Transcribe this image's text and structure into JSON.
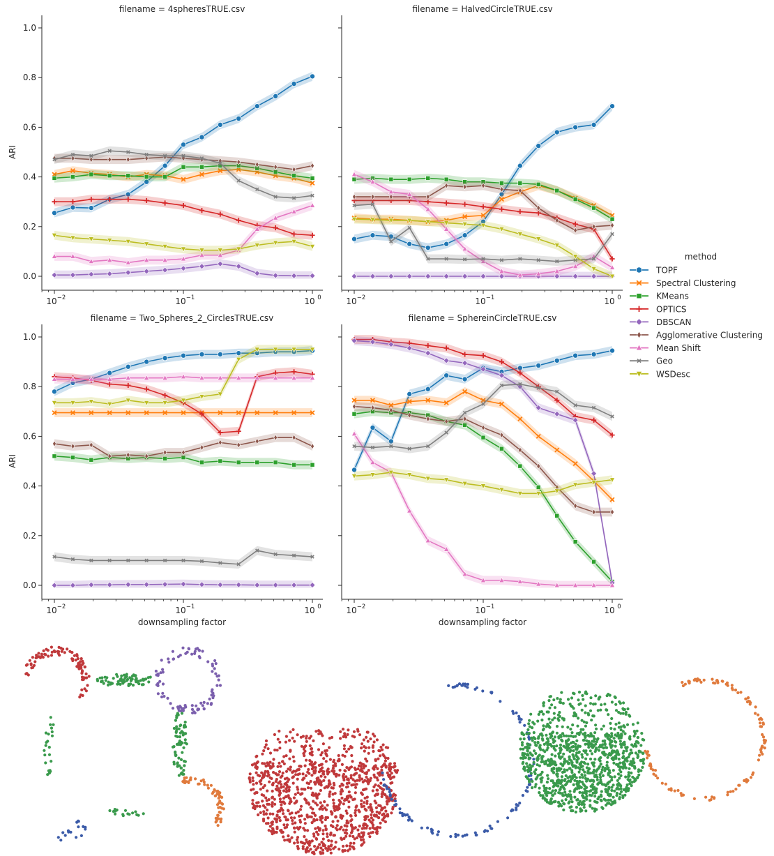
{
  "figure": {
    "legend": {
      "title": "method",
      "entries": [
        {
          "name": "TOPF",
          "color": "#1f77b4",
          "marker": "circle"
        },
        {
          "name": "Spectral Clustering",
          "color": "#ff7f0e",
          "marker": "x"
        },
        {
          "name": "KMeans",
          "color": "#2ca02c",
          "marker": "square"
        },
        {
          "name": "OPTICS",
          "color": "#d62728",
          "marker": "plus"
        },
        {
          "name": "DBSCAN",
          "color": "#9467bd",
          "marker": "diamond"
        },
        {
          "name": "Agglomerative Clustering",
          "color": "#8c564b",
          "marker": "thin-diamond"
        },
        {
          "name": "Mean Shift",
          "color": "#e377c2",
          "marker": "triangle-up"
        },
        {
          "name": "Geo",
          "color": "#7f7f7f",
          "marker": "x-small"
        },
        {
          "name": "WSDesc",
          "color": "#bcbd22",
          "marker": "triangle-down"
        }
      ]
    },
    "ylabel": "ARI",
    "xlabel": "downsampling factor",
    "x_tick_labels": [
      "10",
      "10",
      "10"
    ],
    "x_tick_exponents": [
      "−2",
      "−1",
      "0"
    ],
    "y_tick_labels": [
      "0.0",
      "0.2",
      "0.4",
      "0.6",
      "0.8",
      "1.0"
    ]
  },
  "chart_data": [
    {
      "type": "line",
      "title": "filename = 4spheresTRUE.csv",
      "xscale": "log",
      "xlim": [
        0.01,
        1
      ],
      "ylim": [
        0,
        1
      ],
      "x": [
        0.01,
        0.0139,
        0.0193,
        0.0268,
        0.0373,
        0.0518,
        0.072,
        0.1,
        0.139,
        0.193,
        0.268,
        0.373,
        0.518,
        0.72,
        1.0
      ],
      "series": [
        {
          "name": "TOPF",
          "values": [
            0.255,
            0.277,
            0.275,
            0.31,
            0.33,
            0.38,
            0.445,
            0.53,
            0.56,
            0.61,
            0.635,
            0.685,
            0.725,
            0.775,
            0.805
          ]
        },
        {
          "name": "Spectral Clustering",
          "values": [
            0.41,
            0.425,
            0.415,
            0.41,
            0.4,
            0.41,
            0.405,
            0.39,
            0.41,
            0.425,
            0.43,
            0.42,
            0.405,
            0.395,
            0.375
          ]
        },
        {
          "name": "KMeans",
          "values": [
            0.395,
            0.4,
            0.41,
            0.405,
            0.405,
            0.4,
            0.4,
            0.44,
            0.44,
            0.445,
            0.445,
            0.435,
            0.42,
            0.405,
            0.395
          ]
        },
        {
          "name": "OPTICS",
          "values": [
            0.3,
            0.3,
            0.31,
            0.31,
            0.31,
            0.305,
            0.295,
            0.285,
            0.265,
            0.25,
            0.225,
            0.205,
            0.195,
            0.17,
            0.165
          ]
        },
        {
          "name": "DBSCAN",
          "values": [
            0.005,
            0.005,
            0.008,
            0.01,
            0.015,
            0.02,
            0.025,
            0.032,
            0.04,
            0.05,
            0.04,
            0.012,
            0.003,
            0.002,
            0.002
          ]
        },
        {
          "name": "Agglomerative Clustering",
          "values": [
            0.475,
            0.475,
            0.47,
            0.47,
            0.47,
            0.475,
            0.48,
            0.475,
            0.47,
            0.465,
            0.46,
            0.45,
            0.44,
            0.43,
            0.445
          ]
        },
        {
          "name": "Mean Shift",
          "values": [
            0.08,
            0.08,
            0.06,
            0.065,
            0.055,
            0.065,
            0.065,
            0.07,
            0.085,
            0.085,
            0.105,
            0.19,
            0.235,
            0.26,
            0.285
          ]
        },
        {
          "name": "Geo",
          "values": [
            0.47,
            0.49,
            0.485,
            0.505,
            0.5,
            0.49,
            0.485,
            0.485,
            0.475,
            0.455,
            0.385,
            0.35,
            0.32,
            0.315,
            0.325
          ]
        },
        {
          "name": "WSDesc",
          "values": [
            0.165,
            0.155,
            0.15,
            0.145,
            0.14,
            0.13,
            0.12,
            0.11,
            0.105,
            0.105,
            0.11,
            0.125,
            0.135,
            0.14,
            0.12
          ]
        }
      ]
    },
    {
      "type": "line",
      "title": "filename = HalvedCircleTRUE.csv",
      "xscale": "log",
      "xlim": [
        0.01,
        1
      ],
      "ylim": [
        0,
        1
      ],
      "x": [
        0.01,
        0.0139,
        0.0193,
        0.0268,
        0.0373,
        0.0518,
        0.072,
        0.1,
        0.139,
        0.193,
        0.268,
        0.373,
        0.518,
        0.72,
        1.0
      ],
      "series": [
        {
          "name": "TOPF",
          "values": [
            0.15,
            0.165,
            0.16,
            0.13,
            0.115,
            0.13,
            0.165,
            0.22,
            0.33,
            0.445,
            0.525,
            0.58,
            0.6,
            0.61,
            0.685
          ]
        },
        {
          "name": "Spectral Clustering",
          "values": [
            0.235,
            0.23,
            0.23,
            0.225,
            0.22,
            0.225,
            0.24,
            0.245,
            0.31,
            0.34,
            0.365,
            0.345,
            0.315,
            0.285,
            0.245
          ]
        },
        {
          "name": "KMeans",
          "values": [
            0.39,
            0.395,
            0.39,
            0.39,
            0.395,
            0.39,
            0.38,
            0.38,
            0.375,
            0.375,
            0.37,
            0.345,
            0.31,
            0.275,
            0.23
          ]
        },
        {
          "name": "OPTICS",
          "values": [
            0.305,
            0.305,
            0.305,
            0.305,
            0.3,
            0.295,
            0.29,
            0.28,
            0.27,
            0.26,
            0.255,
            0.235,
            0.21,
            0.19,
            0.07
          ]
        },
        {
          "name": "DBSCAN",
          "values": [
            0.0,
            0.0,
            0.0,
            0.0,
            0.0,
            0.0,
            0.0,
            0.0,
            0.0,
            0.0,
            0.0,
            0.0,
            0.0,
            0.0,
            0.0
          ]
        },
        {
          "name": "Agglomerative Clustering",
          "values": [
            0.32,
            0.32,
            0.32,
            0.32,
            0.32,
            0.365,
            0.36,
            0.365,
            0.35,
            0.345,
            0.275,
            0.225,
            0.185,
            0.2,
            0.205
          ]
        },
        {
          "name": "Mean Shift",
          "values": [
            0.41,
            0.38,
            0.34,
            0.33,
            0.27,
            0.19,
            0.11,
            0.06,
            0.02,
            0.005,
            0.01,
            0.02,
            0.04,
            0.08,
            0.035
          ]
        },
        {
          "name": "Geo",
          "values": [
            0.285,
            0.29,
            0.14,
            0.195,
            0.07,
            0.07,
            0.068,
            0.07,
            0.065,
            0.07,
            0.065,
            0.06,
            0.065,
            0.07,
            0.17
          ]
        },
        {
          "name": "WSDesc",
          "values": [
            0.23,
            0.228,
            0.225,
            0.225,
            0.22,
            0.215,
            0.21,
            0.205,
            0.19,
            0.17,
            0.15,
            0.125,
            0.08,
            0.03,
            0.0
          ]
        }
      ]
    },
    {
      "type": "line",
      "title": "filename = Two_Spheres_2_CirclesTRUE.csv",
      "xscale": "log",
      "xlim": [
        0.01,
        1
      ],
      "ylim": [
        0,
        1
      ],
      "x": [
        0.01,
        0.0139,
        0.0193,
        0.0268,
        0.0373,
        0.0518,
        0.072,
        0.1,
        0.139,
        0.193,
        0.268,
        0.373,
        0.518,
        0.72,
        1.0
      ],
      "series": [
        {
          "name": "TOPF",
          "values": [
            0.78,
            0.815,
            0.83,
            0.855,
            0.88,
            0.9,
            0.915,
            0.925,
            0.93,
            0.93,
            0.935,
            0.935,
            0.94,
            0.94,
            0.945
          ]
        },
        {
          "name": "Spectral Clustering",
          "values": [
            0.695,
            0.695,
            0.695,
            0.695,
            0.695,
            0.695,
            0.695,
            0.695,
            0.695,
            0.695,
            0.695,
            0.695,
            0.695,
            0.695,
            0.695
          ]
        },
        {
          "name": "KMeans",
          "values": [
            0.52,
            0.515,
            0.505,
            0.515,
            0.51,
            0.515,
            0.51,
            0.515,
            0.495,
            0.5,
            0.495,
            0.495,
            0.495,
            0.485,
            0.485
          ]
        },
        {
          "name": "OPTICS",
          "values": [
            0.84,
            0.835,
            0.825,
            0.81,
            0.805,
            0.79,
            0.765,
            0.735,
            0.69,
            0.615,
            0.62,
            0.84,
            0.855,
            0.86,
            0.85
          ]
        },
        {
          "name": "DBSCAN",
          "values": [
            0.0,
            0.0,
            0.002,
            0.002,
            0.003,
            0.003,
            0.004,
            0.005,
            0.003,
            0.002,
            0.002,
            0.001,
            0.001,
            0.001,
            0.001
          ]
        },
        {
          "name": "Agglomerative Clustering",
          "values": [
            0.57,
            0.56,
            0.565,
            0.52,
            0.525,
            0.52,
            0.535,
            0.535,
            0.555,
            0.575,
            0.565,
            0.58,
            0.595,
            0.595,
            0.56
          ]
        },
        {
          "name": "Mean Shift",
          "values": [
            0.83,
            0.83,
            0.83,
            0.83,
            0.835,
            0.835,
            0.835,
            0.84,
            0.835,
            0.835,
            0.835,
            0.835,
            0.835,
            0.835,
            0.835
          ]
        },
        {
          "name": "Geo",
          "values": [
            0.115,
            0.105,
            0.1,
            0.1,
            0.1,
            0.1,
            0.1,
            0.1,
            0.097,
            0.09,
            0.085,
            0.14,
            0.125,
            0.12,
            0.115
          ]
        },
        {
          "name": "WSDesc",
          "values": [
            0.735,
            0.735,
            0.74,
            0.73,
            0.745,
            0.735,
            0.735,
            0.745,
            0.76,
            0.77,
            0.91,
            0.95,
            0.95,
            0.95,
            0.95
          ]
        }
      ]
    },
    {
      "type": "line",
      "title": "filename = SphereinCircleTRUE.csv",
      "xscale": "log",
      "xlim": [
        0.01,
        1
      ],
      "ylim": [
        0,
        1
      ],
      "x": [
        0.01,
        0.0139,
        0.0193,
        0.0268,
        0.0373,
        0.0518,
        0.072,
        0.1,
        0.139,
        0.193,
        0.268,
        0.373,
        0.518,
        0.72,
        1.0
      ],
      "series": [
        {
          "name": "TOPF",
          "values": [
            0.465,
            0.635,
            0.58,
            0.77,
            0.79,
            0.845,
            0.83,
            0.875,
            0.86,
            0.875,
            0.885,
            0.905,
            0.925,
            0.93,
            0.945
          ]
        },
        {
          "name": "Spectral Clustering",
          "values": [
            0.745,
            0.745,
            0.725,
            0.74,
            0.745,
            0.735,
            0.78,
            0.745,
            0.73,
            0.67,
            0.6,
            0.545,
            0.49,
            0.42,
            0.345
          ]
        },
        {
          "name": "KMeans",
          "values": [
            0.69,
            0.7,
            0.695,
            0.695,
            0.685,
            0.66,
            0.645,
            0.595,
            0.55,
            0.48,
            0.395,
            0.28,
            0.175,
            0.095,
            0.015
          ]
        },
        {
          "name": "OPTICS",
          "values": [
            0.99,
            0.99,
            0.98,
            0.975,
            0.965,
            0.955,
            0.93,
            0.925,
            0.9,
            0.855,
            0.8,
            0.745,
            0.68,
            0.665,
            0.605
          ]
        },
        {
          "name": "DBSCAN",
          "values": [
            0.985,
            0.98,
            0.97,
            0.955,
            0.935,
            0.905,
            0.895,
            0.87,
            0.845,
            0.8,
            0.715,
            0.69,
            0.665,
            0.45,
            0.01
          ]
        },
        {
          "name": "Agglomerative Clustering",
          "values": [
            0.72,
            0.715,
            0.705,
            0.685,
            0.67,
            0.66,
            0.67,
            0.635,
            0.605,
            0.545,
            0.48,
            0.395,
            0.32,
            0.295,
            0.295
          ]
        },
        {
          "name": "Mean Shift",
          "values": [
            0.61,
            0.495,
            0.455,
            0.3,
            0.18,
            0.145,
            0.045,
            0.02,
            0.02,
            0.015,
            0.005,
            0.0,
            0.0,
            0.0,
            0.0
          ]
        },
        {
          "name": "Geo",
          "values": [
            0.56,
            0.555,
            0.56,
            0.55,
            0.56,
            0.615,
            0.695,
            0.73,
            0.805,
            0.81,
            0.795,
            0.78,
            0.725,
            0.715,
            0.68
          ]
        },
        {
          "name": "WSDesc",
          "values": [
            0.44,
            0.445,
            0.455,
            0.445,
            0.43,
            0.425,
            0.41,
            0.4,
            0.385,
            0.37,
            0.37,
            0.38,
            0.405,
            0.415,
            0.425
          ]
        }
      ]
    }
  ],
  "scatter_illustrations": {
    "colors": {
      "red": "#c0393b",
      "green": "#3a9a4c",
      "purple": "#7b5fad",
      "orange": "#e07a3c",
      "blue": "#3b5ba8"
    }
  }
}
